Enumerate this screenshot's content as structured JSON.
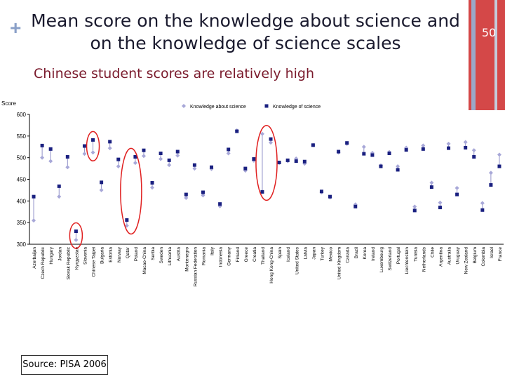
{
  "slide": {
    "title_line1": "Mean score on the knowledge about science and",
    "title_line2": "on the knowledge of science scales",
    "subtitle": "Chinese student scores are relatively high",
    "page_number": "50",
    "source": "Source: PISA 2006",
    "plus_icon": "plus-icon"
  },
  "colors": {
    "about_science": "#a8a8d8",
    "of_science": "#1a2080",
    "connector": "#9090c8",
    "highlight_ellipse": "#e02020",
    "title": "#1a1a2e",
    "subtitle": "#7a1a2c",
    "side_bar": "#d44848"
  },
  "chart_data": {
    "type": "scatter",
    "ylabel": "Score",
    "ylim": [
      300,
      600
    ],
    "yticks": [
      300,
      350,
      400,
      450,
      500,
      550,
      600
    ],
    "grid": false,
    "legend_position": "top",
    "highlighted_countries": [
      "Kyrgyzstan",
      "Chinese Taipei",
      "Qatar",
      "Poland",
      "Thailand",
      "Hong Kong-China"
    ],
    "categories": [
      "Azerbaijan",
      "Czech Republic",
      "Hungary",
      "Jordan",
      "Slovak Republic",
      "Kyrgyzstan",
      "Slovenia",
      "Chinese Taipei",
      "Bulgaria",
      "Estonia",
      "Norway",
      "Qatar",
      "Poland",
      "Macao-China",
      "Serbia",
      "Sweden",
      "Lithuania",
      "Austria",
      "Montenegro",
      "Russian Federation",
      "Romania",
      "Italy",
      "Indonesia",
      "Germany",
      "Finland",
      "Greece",
      "Croatia",
      "Thailand",
      "Hong Kong-China",
      "Spain",
      "Iceland",
      "United States",
      "Latvia",
      "Japan",
      "Turkey",
      "Mexico",
      "United Kingdom",
      "Canada",
      "Brazil",
      "Korea",
      "Ireland",
      "Luxembourg",
      "Switzerland",
      "Portugal",
      "Liechtenstein",
      "Tunisia",
      "Netherlands",
      "Chile",
      "Argentina",
      "Australia",
      "Uruguay",
      "New Zealand",
      "Belgium",
      "Colombia",
      "Israel",
      "France"
    ],
    "series": [
      {
        "name": "Knowledge about science",
        "marker": "diamond",
        "values": [
          355,
          500,
          492,
          410,
          478,
          310,
          509,
          512,
          425,
          522,
          480,
          343,
          488,
          504,
          431,
          497,
          483,
          505,
          407,
          475,
          413,
          474,
          388,
          510,
          563,
          470,
          493,
          555,
          535,
          488,
          492,
          498,
          486,
          529,
          420,
          408,
          512,
          532,
          392,
          525,
          511,
          482,
          513,
          480,
          523,
          387,
          528,
          442,
          396,
          532,
          430,
          536,
          517,
          395,
          465,
          507
        ]
      },
      {
        "name": "Knowledge of science",
        "marker": "square",
        "values": [
          410,
          528,
          520,
          434,
          502,
          330,
          527,
          541,
          443,
          537,
          496,
          356,
          502,
          517,
          442,
          510,
          494,
          514,
          415,
          483,
          420,
          478,
          393,
          519,
          561,
          475,
          497,
          421,
          543,
          489,
          494,
          492,
          491,
          529,
          422,
          410,
          514,
          534,
          387,
          509,
          506,
          480,
          510,
          472,
          518,
          378,
          520,
          432,
          385,
          522,
          415,
          523,
          502,
          379,
          437,
          480
        ]
      }
    ]
  }
}
